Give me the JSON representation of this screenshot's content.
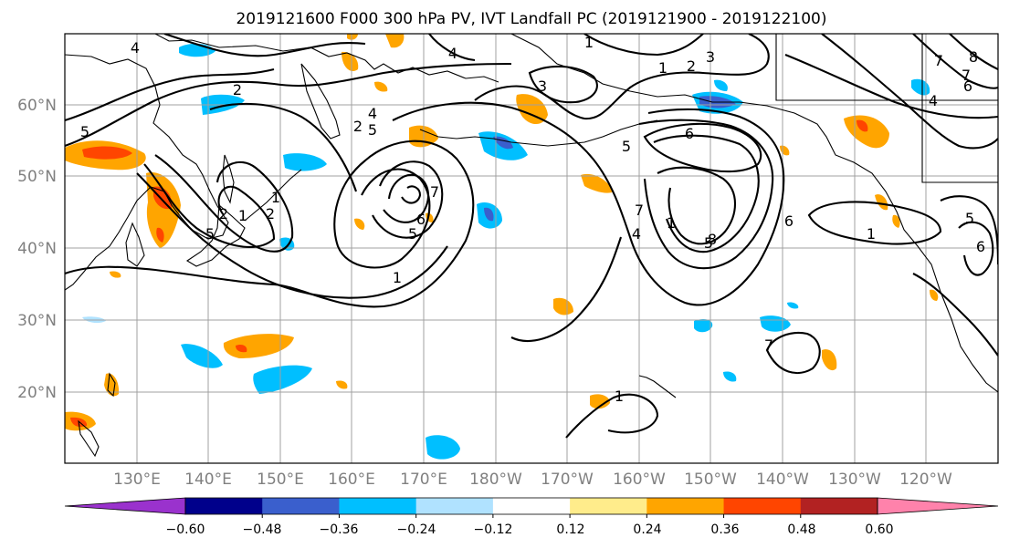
{
  "title": "2019121600 F000 300 hPa PV, IVT Landfall PC (2019121900 - 2019122100)",
  "lat_labels": [
    "60°N",
    "50°N",
    "40°N",
    "30°N",
    "20°N"
  ],
  "lon_labels": [
    "130°E",
    "140°E",
    "150°E",
    "160°E",
    "170°E",
    "180°W",
    "170°W",
    "160°W",
    "150°W",
    "140°W",
    "130°W",
    "120°W"
  ],
  "contour_labels": [
    "4",
    "4",
    "1",
    "2",
    "3",
    "1",
    "2",
    "3",
    "5",
    "2",
    "5",
    "4",
    "5",
    "1",
    "2",
    "1",
    "2",
    "6",
    "5",
    "1",
    "7",
    "6",
    "5",
    "4",
    "1",
    "7",
    "5",
    "8",
    "6",
    "4",
    "6",
    "7",
    "8",
    "1",
    "7",
    "1",
    "7",
    "5",
    "6"
  ],
  "colorbar": {
    "ticks": [
      "−0.60",
      "−0.48",
      "−0.36",
      "−0.24",
      "−0.12",
      "0.12",
      "0.24",
      "0.36",
      "0.48",
      "0.60"
    ],
    "colors": [
      "#9a32cd",
      "#00008b",
      "#3a5fcd",
      "#00bfff",
      "#b0e2ff",
      "#ffffff",
      "#ffec8b",
      "#ffa500",
      "#ff4500",
      "#b22222",
      "#ff82ab"
    ]
  },
  "map": {
    "projection": "plate-carree",
    "lon_range": [
      "120°E",
      "115°W"
    ],
    "lat_range": [
      "10°N",
      "69°N"
    ]
  }
}
